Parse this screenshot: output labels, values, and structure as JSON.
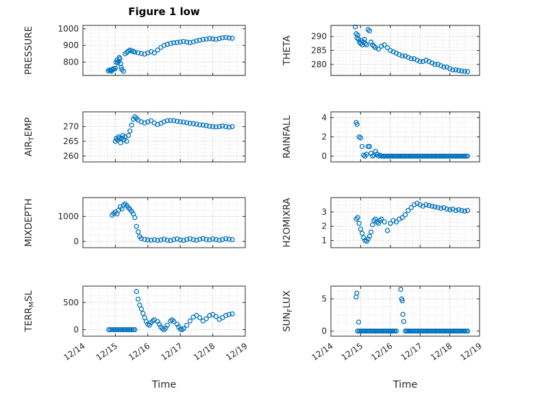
{
  "title": "Figure 1 low",
  "colors": {
    "marker": "#0072BD",
    "axis": "#262626",
    "grid_major": "#b0b0b0",
    "grid_minor": "#d8d8d8",
    "background": "#ffffff"
  },
  "x_axis": {
    "lim": [
      14,
      19
    ],
    "ticks": [
      14,
      15,
      16,
      17,
      18,
      19
    ],
    "ticklabels": [
      "12/14",
      "12/15",
      "12/16",
      "12/17",
      "12/18",
      "12/19"
    ],
    "label": "Time"
  },
  "chart_data": [
    {
      "type": "scatter",
      "name": "pressure",
      "ylabel": [
        {
          "t": "PRESSURE"
        }
      ],
      "yticks": [
        800,
        900,
        1000
      ],
      "ylim": [
        720,
        1020
      ],
      "show_xticklabels": false,
      "xlabel": "",
      "x": [
        14.78,
        14.82,
        14.85,
        14.88,
        14.9,
        14.93,
        14.96,
        15.0,
        15.02,
        15.05,
        15.07,
        15.1,
        15.12,
        15.14,
        15.16,
        15.18,
        15.2,
        15.25,
        15.3,
        15.35,
        15.4,
        15.45,
        15.5,
        15.55,
        15.6,
        15.7,
        15.8,
        15.9,
        16.0,
        16.1,
        16.2,
        16.3,
        16.4,
        16.5,
        16.6,
        16.7,
        16.8,
        16.9,
        17.0,
        17.1,
        17.2,
        17.3,
        17.4,
        17.5,
        17.6,
        17.7,
        17.8,
        17.9,
        18.0,
        18.1,
        18.2,
        18.3,
        18.4,
        18.5,
        18.6
      ],
      "y": [
        748,
        752,
        750,
        746,
        755,
        760,
        758,
        763,
        800,
        812,
        795,
        805,
        828,
        820,
        790,
        768,
        755,
        745,
        850,
        858,
        866,
        872,
        868,
        864,
        860,
        856,
        852,
        848,
        855,
        862,
        855,
        872,
        888,
        900,
        906,
        912,
        916,
        918,
        921,
        924,
        920,
        917,
        921,
        927,
        931,
        936,
        938,
        941,
        939,
        936,
        941,
        946,
        948,
        945,
        943
      ]
    },
    {
      "type": "scatter",
      "name": "theta",
      "ylabel": [
        {
          "t": "THETA"
        }
      ],
      "yticks": [
        280,
        285,
        290
      ],
      "ylim": [
        276,
        294
      ],
      "show_xticklabels": false,
      "xlabel": "",
      "x": [
        14.82,
        14.85,
        14.88,
        14.9,
        14.93,
        14.96,
        15.0,
        15.03,
        15.06,
        15.1,
        15.13,
        15.16,
        15.2,
        15.25,
        15.3,
        15.35,
        15.4,
        15.45,
        15.5,
        15.6,
        15.7,
        15.8,
        15.9,
        16.0,
        16.1,
        16.2,
        16.3,
        16.4,
        16.5,
        16.6,
        16.7,
        16.8,
        16.9,
        17.0,
        17.1,
        17.2,
        17.3,
        17.4,
        17.5,
        17.6,
        17.7,
        17.8,
        17.9,
        18.0,
        18.1,
        18.2,
        18.3,
        18.4,
        18.5,
        18.6
      ],
      "y": [
        293.5,
        291,
        289.5,
        290.5,
        289,
        288,
        287.5,
        288.5,
        287,
        288,
        289,
        287.5,
        287,
        292.5,
        292,
        288,
        287,
        286.5,
        286,
        285.5,
        286.5,
        287,
        286,
        285,
        284.5,
        284,
        283.5,
        283,
        283,
        282.5,
        282,
        282,
        281.5,
        281,
        281,
        281.5,
        281,
        280.5,
        280,
        280,
        279.5,
        279,
        279,
        278.5,
        278,
        278,
        277.8,
        277.6,
        277.5,
        277.4
      ]
    },
    {
      "type": "scatter",
      "name": "air-temp",
      "ylabel": [
        {
          "t": "AIR"
        },
        {
          "t": "T",
          "sub": true
        },
        {
          "t": "EMP"
        }
      ],
      "yticks": [
        260,
        265,
        270
      ],
      "ylim": [
        258,
        275
      ],
      "show_xticklabels": false,
      "xlabel": "",
      "x": [
        15.0,
        15.03,
        15.06,
        15.1,
        15.13,
        15.16,
        15.2,
        15.23,
        15.26,
        15.3,
        15.35,
        15.4,
        15.45,
        15.5,
        15.55,
        15.6,
        15.65,
        15.7,
        15.8,
        15.9,
        16.0,
        16.1,
        16.2,
        16.3,
        16.4,
        16.5,
        16.6,
        16.7,
        16.8,
        16.9,
        17.0,
        17.1,
        17.2,
        17.3,
        17.4,
        17.5,
        17.6,
        17.7,
        17.8,
        17.9,
        18.0,
        18.1,
        18.2,
        18.3,
        18.4,
        18.5,
        18.6
      ],
      "y": [
        265,
        266,
        265.5,
        266.5,
        266,
        264.5,
        266,
        267,
        265.5,
        266.5,
        265,
        267,
        268.5,
        270.5,
        272.5,
        273.3,
        272.8,
        272.2,
        271.6,
        271.2,
        271.6,
        272,
        271.2,
        270.7,
        271.1,
        271.6,
        272,
        272.1,
        272,
        271.8,
        271.6,
        271.5,
        271.3,
        271.1,
        271,
        270.8,
        270.6,
        270.5,
        270.3,
        270.1,
        270,
        269.9,
        270,
        270.2,
        270,
        269.8,
        270
      ]
    },
    {
      "type": "scatter",
      "name": "rainfall",
      "ylabel": [
        {
          "t": "RAINFALL"
        }
      ],
      "yticks": [
        0,
        2,
        4
      ],
      "ylim": [
        -0.6,
        4.6
      ],
      "show_xticklabels": false,
      "xlabel": "",
      "x": [
        14.85,
        14.88,
        14.95,
        15.0,
        15.05,
        15.1,
        15.15,
        15.2,
        15.25,
        15.3,
        15.35,
        15.4,
        15.45,
        15.5,
        15.55,
        15.6,
        15.65,
        15.7,
        15.75,
        15.8,
        15.85,
        15.9,
        15.95,
        16.0,
        16.05,
        16.1,
        16.15,
        16.2,
        16.25,
        16.3,
        16.35,
        16.4,
        16.45,
        16.5,
        16.55,
        16.6,
        16.65,
        16.7,
        16.75,
        16.8,
        16.85,
        16.9,
        16.95,
        17.0,
        17.05,
        17.1,
        17.15,
        17.2,
        17.25,
        17.3,
        17.35,
        17.4,
        17.45,
        17.5,
        17.55,
        17.6,
        17.65,
        17.7,
        17.75,
        17.8,
        17.85,
        17.9,
        17.95,
        18.0,
        18.05,
        18.1,
        18.15,
        18.2,
        18.25,
        18.3,
        18.35,
        18.4,
        18.45,
        18.5,
        18.55,
        18.6
      ],
      "y": [
        3.5,
        3.3,
        2.0,
        1.9,
        1.0,
        0.1,
        0,
        0.2,
        1.0,
        1.0,
        0.3,
        0,
        0.1,
        0.5,
        0.2,
        0,
        0.1,
        0,
        0,
        0,
        0,
        0,
        0,
        0,
        0,
        0,
        0,
        0,
        0,
        0,
        0,
        0,
        0,
        0,
        0,
        0,
        0,
        0,
        0,
        0,
        0,
        0,
        0,
        0,
        0,
        0,
        0,
        0,
        0,
        0,
        0,
        0,
        0,
        0,
        0,
        0,
        0,
        0,
        0,
        0,
        0,
        0,
        0,
        0,
        0,
        0,
        0,
        0,
        0,
        0,
        0,
        0,
        0,
        0,
        0,
        0
      ]
    },
    {
      "type": "scatter",
      "name": "mixdepth",
      "ylabel": [
        {
          "t": "MIXDEPTH"
        }
      ],
      "yticks": [
        0,
        1000
      ],
      "ylim": [
        -250,
        1750
      ],
      "show_xticklabels": false,
      "xlabel": "",
      "x": [
        14.9,
        14.95,
        15.0,
        15.05,
        15.1,
        15.15,
        15.2,
        15.25,
        15.3,
        15.35,
        15.4,
        15.45,
        15.5,
        15.55,
        15.6,
        15.65,
        15.7,
        15.75,
        15.8,
        15.9,
        16.0,
        16.1,
        16.2,
        16.3,
        16.4,
        16.5,
        16.6,
        16.7,
        16.8,
        16.9,
        17.0,
        17.1,
        17.2,
        17.3,
        17.4,
        17.5,
        17.6,
        17.7,
        17.8,
        17.9,
        18.0,
        18.1,
        18.2,
        18.3,
        18.4,
        18.5,
        18.6
      ],
      "y": [
        1050,
        1120,
        1180,
        1100,
        1250,
        1380,
        1300,
        1450,
        1500,
        1430,
        1350,
        1280,
        1200,
        1100,
        950,
        600,
        380,
        200,
        120,
        80,
        60,
        50,
        70,
        40,
        60,
        90,
        50,
        30,
        70,
        100,
        60,
        40,
        80,
        110,
        70,
        50,
        90,
        120,
        80,
        60,
        100,
        70,
        50,
        80,
        110,
        90,
        70
      ]
    },
    {
      "type": "scatter",
      "name": "h2omixra",
      "ylabel": [
        {
          "t": "H2OMIXRA"
        }
      ],
      "yticks": [
        1,
        2,
        3
      ],
      "ylim": [
        0.5,
        4
      ],
      "show_xticklabels": false,
      "xlabel": "",
      "x": [
        14.85,
        14.9,
        14.95,
        15.0,
        15.05,
        15.1,
        15.15,
        15.2,
        15.25,
        15.3,
        15.35,
        15.4,
        15.45,
        15.5,
        15.55,
        15.6,
        15.65,
        15.7,
        15.8,
        15.9,
        16.0,
        16.1,
        16.2,
        16.3,
        16.4,
        16.5,
        16.6,
        16.7,
        16.8,
        16.9,
        17.0,
        17.1,
        17.2,
        17.3,
        17.4,
        17.5,
        17.6,
        17.7,
        17.8,
        17.9,
        18.0,
        18.1,
        18.2,
        18.3,
        18.4,
        18.5,
        18.6
      ],
      "y": [
        2.5,
        2.6,
        2.2,
        1.8,
        1.5,
        1.2,
        1.0,
        0.95,
        1.1,
        1.3,
        1.6,
        2.1,
        2.4,
        2.5,
        2.3,
        2.2,
        2.4,
        2.5,
        2.3,
        1.7,
        2.2,
        2.4,
        2.3,
        2.5,
        2.6,
        2.8,
        3.1,
        3.3,
        3.5,
        3.6,
        3.5,
        3.4,
        3.5,
        3.45,
        3.4,
        3.35,
        3.3,
        3.25,
        3.3,
        3.2,
        3.15,
        3.2,
        3.1,
        3.15,
        3.1,
        3.05,
        3.1
      ]
    },
    {
      "type": "scatter",
      "name": "terr-msl",
      "ylabel": [
        {
          "t": "TERR"
        },
        {
          "t": "M",
          "sub": true
        },
        {
          "t": "SL"
        }
      ],
      "yticks": [
        0,
        500
      ],
      "ylim": [
        -120,
        800
      ],
      "show_xticklabels": true,
      "xlabel": "Time",
      "x": [
        14.8,
        14.85,
        14.9,
        14.95,
        15.0,
        15.05,
        15.1,
        15.15,
        15.2,
        15.25,
        15.3,
        15.35,
        15.4,
        15.45,
        15.5,
        15.55,
        15.6,
        15.65,
        15.7,
        15.75,
        15.8,
        15.85,
        15.9,
        15.95,
        16.0,
        16.05,
        16.1,
        16.15,
        16.2,
        16.3,
        16.35,
        16.4,
        16.45,
        16.5,
        16.55,
        16.6,
        16.7,
        16.75,
        16.8,
        16.9,
        16.95,
        17.0,
        17.05,
        17.1,
        17.2,
        17.3,
        17.4,
        17.5,
        17.6,
        17.7,
        17.8,
        17.9,
        18.0,
        18.1,
        18.2,
        18.3,
        18.4,
        18.5,
        18.6
      ],
      "y": [
        0,
        0,
        0,
        0,
        0,
        0,
        0,
        0,
        0,
        0,
        0,
        0,
        0,
        0,
        0,
        0,
        0,
        700,
        560,
        450,
        380,
        300,
        220,
        150,
        100,
        80,
        130,
        160,
        180,
        150,
        100,
        50,
        20,
        0,
        30,
        80,
        160,
        180,
        150,
        100,
        50,
        10,
        0,
        20,
        80,
        160,
        230,
        260,
        220,
        160,
        200,
        260,
        280,
        240,
        190,
        220,
        260,
        280,
        290
      ]
    },
    {
      "type": "scatter",
      "name": "sun-flux",
      "ylabel": [
        {
          "t": "SUN"
        },
        {
          "t": "F",
          "sub": true
        },
        {
          "t": "LUX"
        }
      ],
      "yticks": [
        0,
        5
      ],
      "ylim": [
        -0.8,
        7
      ],
      "show_xticklabels": true,
      "xlabel": "Time",
      "x": [
        14.85,
        14.87,
        14.9,
        14.93,
        14.95,
        15.0,
        15.05,
        15.1,
        15.15,
        15.2,
        15.25,
        15.3,
        15.35,
        15.4,
        15.45,
        15.5,
        15.55,
        15.6,
        15.65,
        15.7,
        15.75,
        15.8,
        15.85,
        15.9,
        15.95,
        16.0,
        16.05,
        16.1,
        16.15,
        16.2,
        16.35,
        16.38,
        16.4,
        16.42,
        16.45,
        16.5,
        16.55,
        16.6,
        16.65,
        16.7,
        16.75,
        16.8,
        16.85,
        16.9,
        16.95,
        17.0,
        17.05,
        17.1,
        17.15,
        17.2,
        17.25,
        17.3,
        17.35,
        17.4,
        17.45,
        17.5,
        17.55,
        17.6,
        17.65,
        17.7,
        17.75,
        17.8,
        17.85,
        17.9,
        17.95,
        18.0,
        18.05,
        18.1,
        18.15,
        18.2,
        18.25,
        18.3,
        18.35,
        18.4,
        18.45,
        18.5,
        18.55,
        18.6
      ],
      "y": [
        5.3,
        5.9,
        0,
        1.4,
        0,
        0,
        0,
        0,
        0,
        0,
        0,
        0,
        0,
        0,
        0,
        0,
        0,
        0,
        0,
        0,
        0,
        0,
        0,
        0,
        0,
        0,
        0,
        0,
        0,
        0,
        6.5,
        5,
        4.7,
        2.6,
        1.5,
        0,
        0,
        0,
        0,
        0,
        0,
        0,
        0,
        0,
        0,
        0,
        0,
        0,
        0,
        0,
        0,
        0,
        0,
        0,
        0,
        0,
        0,
        0,
        0,
        0,
        0,
        0,
        0,
        0,
        0,
        0,
        0,
        0,
        0,
        0,
        0,
        0,
        0,
        0,
        0,
        0,
        0,
        0
      ]
    }
  ]
}
